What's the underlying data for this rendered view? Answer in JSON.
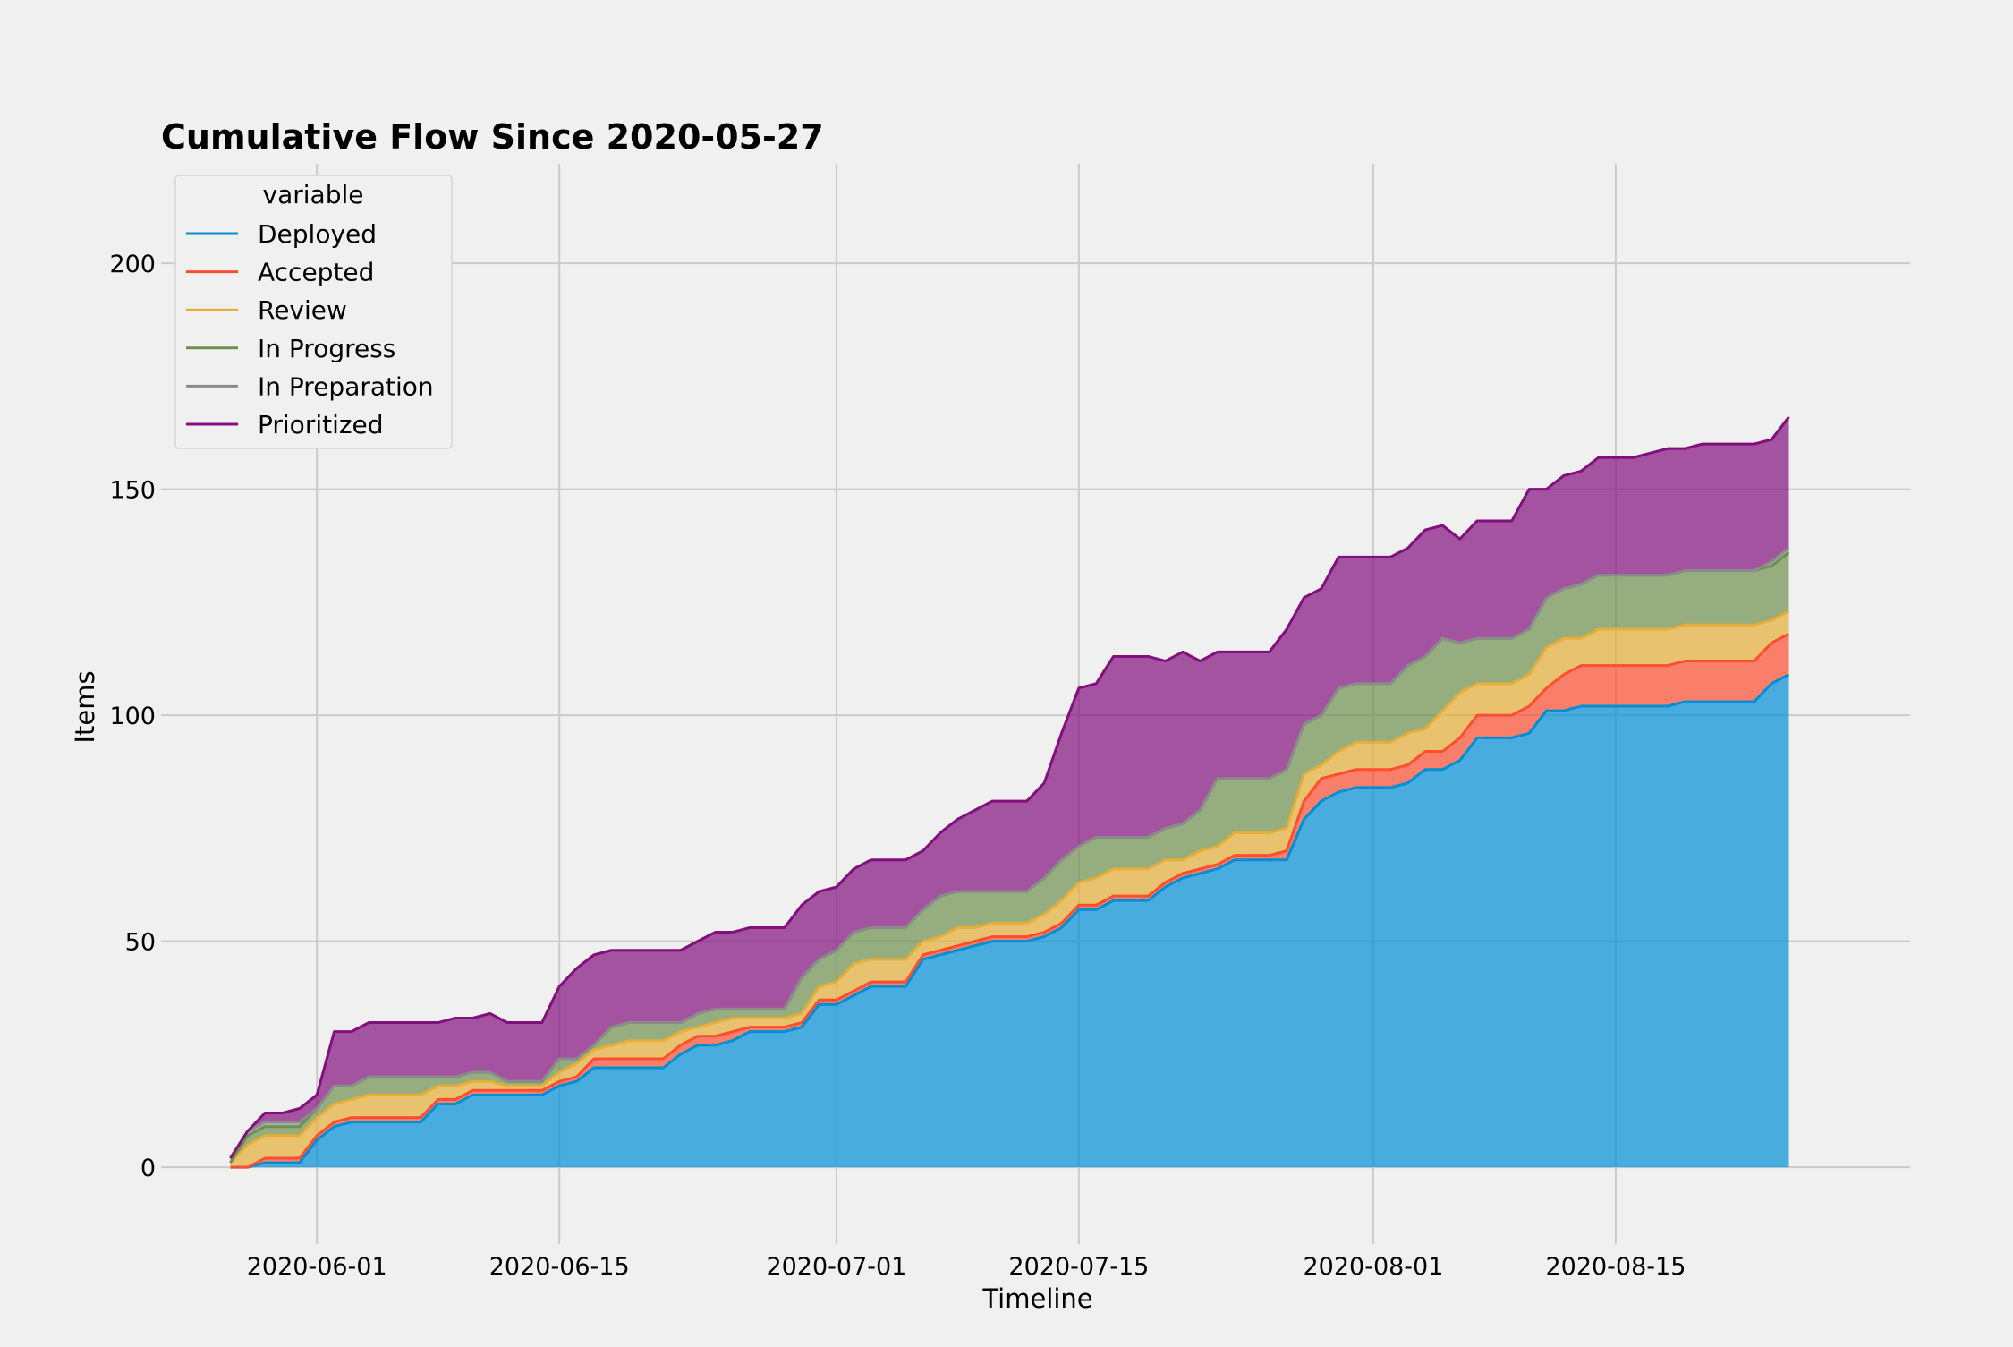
{
  "chart_data": {
    "type": "area",
    "stacked": true,
    "title": "Cumulative Flow Since 2020-05-27",
    "xlabel": "Timeline",
    "ylabel": "Items",
    "x_range": [
      "2020-05-23",
      "2020-09-01"
    ],
    "ylim": [
      -17,
      222
    ],
    "grid": true,
    "legend": {
      "title": "variable",
      "placement": "top-left"
    },
    "x_ticks": [
      "2020-06-01",
      "2020-06-15",
      "2020-07-01",
      "2020-07-15",
      "2020-08-01",
      "2020-08-15"
    ],
    "y_ticks": [
      0,
      50,
      100,
      150,
      200
    ],
    "dates": [
      "2020-05-27",
      "2020-05-28",
      "2020-05-29",
      "2020-05-30",
      "2020-05-31",
      "2020-06-01",
      "2020-06-02",
      "2020-06-03",
      "2020-06-04",
      "2020-06-05",
      "2020-06-06",
      "2020-06-07",
      "2020-06-08",
      "2020-06-09",
      "2020-06-10",
      "2020-06-11",
      "2020-06-12",
      "2020-06-13",
      "2020-06-14",
      "2020-06-15",
      "2020-06-16",
      "2020-06-17",
      "2020-06-18",
      "2020-06-19",
      "2020-06-20",
      "2020-06-21",
      "2020-06-22",
      "2020-06-23",
      "2020-06-24",
      "2020-06-25",
      "2020-06-26",
      "2020-06-27",
      "2020-06-28",
      "2020-06-29",
      "2020-06-30",
      "2020-07-01",
      "2020-07-02",
      "2020-07-03",
      "2020-07-04",
      "2020-07-05",
      "2020-07-06",
      "2020-07-07",
      "2020-07-08",
      "2020-07-09",
      "2020-07-10",
      "2020-07-11",
      "2020-07-12",
      "2020-07-13",
      "2020-07-14",
      "2020-07-15",
      "2020-07-16",
      "2020-07-17",
      "2020-07-18",
      "2020-07-19",
      "2020-07-20",
      "2020-07-21",
      "2020-07-22",
      "2020-07-23",
      "2020-07-24",
      "2020-07-25",
      "2020-07-26",
      "2020-07-27",
      "2020-07-28",
      "2020-07-29",
      "2020-07-30",
      "2020-07-31",
      "2020-08-01",
      "2020-08-02",
      "2020-08-03",
      "2020-08-04",
      "2020-08-05",
      "2020-08-06",
      "2020-08-07",
      "2020-08-08",
      "2020-08-09",
      "2020-08-10",
      "2020-08-11",
      "2020-08-12",
      "2020-08-13",
      "2020-08-14",
      "2020-08-15",
      "2020-08-16",
      "2020-08-17",
      "2020-08-18",
      "2020-08-19",
      "2020-08-20",
      "2020-08-21",
      "2020-08-22",
      "2020-08-23",
      "2020-08-24",
      "2020-08-25"
    ],
    "series": [
      {
        "name": "Deployed",
        "color": "#008fd5",
        "values": [
          0,
          0,
          1,
          1,
          1,
          6,
          9,
          10,
          10,
          10,
          10,
          10,
          14,
          14,
          16,
          16,
          16,
          16,
          16,
          18,
          19,
          22,
          22,
          22,
          22,
          22,
          25,
          27,
          27,
          28,
          30,
          30,
          30,
          31,
          36,
          36,
          38,
          40,
          40,
          40,
          46,
          47,
          48,
          49,
          50,
          50,
          50,
          51,
          53,
          57,
          57,
          59,
          59,
          59,
          62,
          64,
          65,
          66,
          68,
          68,
          68,
          68,
          77,
          81,
          83,
          84,
          84,
          84,
          85,
          88,
          88,
          90,
          95,
          95,
          95,
          96,
          101,
          101,
          102,
          102,
          102,
          102,
          102,
          102,
          103,
          103,
          103,
          103,
          103,
          107,
          109
        ]
      },
      {
        "name": "Accepted",
        "color": "#fc4f30",
        "values": [
          0,
          0,
          1,
          1,
          1,
          1,
          1,
          1,
          1,
          1,
          1,
          1,
          1,
          1,
          1,
          1,
          1,
          1,
          1,
          1,
          1,
          2,
          2,
          2,
          2,
          2,
          2,
          2,
          2,
          2,
          1,
          1,
          1,
          1,
          1,
          1,
          1,
          1,
          1,
          1,
          1,
          1,
          1,
          1,
          1,
          1,
          1,
          1,
          1,
          1,
          1,
          1,
          1,
          1,
          1,
          1,
          1,
          1,
          1,
          1,
          1,
          2,
          4,
          5,
          4,
          4,
          4,
          4,
          4,
          4,
          4,
          5,
          5,
          5,
          5,
          6,
          5,
          8,
          9,
          9,
          9,
          9,
          9,
          9,
          9,
          9,
          9,
          9,
          9,
          9,
          9
        ]
      },
      {
        "name": "Review",
        "color": "#e5ae38",
        "values": [
          1,
          5,
          5,
          5,
          5,
          4,
          4,
          4,
          5,
          5,
          5,
          5,
          3,
          3,
          2,
          2,
          1,
          1,
          1,
          2,
          3,
          2,
          3,
          4,
          4,
          4,
          3,
          2,
          3,
          3,
          2,
          2,
          2,
          2,
          3,
          4,
          6,
          5,
          5,
          5,
          3,
          3,
          4,
          3,
          3,
          3,
          3,
          4,
          5,
          5,
          6,
          6,
          6,
          6,
          5,
          3,
          4,
          4,
          5,
          5,
          5,
          5,
          6,
          3,
          5,
          6,
          6,
          6,
          7,
          5,
          9,
          10,
          7,
          7,
          7,
          7,
          9,
          8,
          6,
          8,
          8,
          8,
          8,
          8,
          8,
          8,
          8,
          8,
          8,
          5,
          5
        ]
      },
      {
        "name": "In Progress",
        "color": "#6d904f",
        "values": [
          0,
          2,
          2,
          2,
          2,
          2,
          4,
          3,
          4,
          4,
          4,
          4,
          2,
          2,
          2,
          2,
          1,
          1,
          1,
          3,
          1,
          1,
          4,
          4,
          4,
          4,
          2,
          3,
          3,
          2,
          2,
          2,
          2,
          8,
          6,
          7,
          7,
          7,
          7,
          7,
          7,
          9,
          8,
          8,
          7,
          7,
          7,
          8,
          9,
          8,
          9,
          7,
          7,
          7,
          7,
          8,
          9,
          15,
          12,
          12,
          12,
          13,
          11,
          11,
          14,
          13,
          13,
          13,
          15,
          16,
          16,
          11,
          10,
          10,
          10,
          10,
          11,
          11,
          12,
          12,
          12,
          12,
          12,
          12,
          12,
          12,
          12,
          12,
          12,
          12,
          13
        ]
      },
      {
        "name": "In Preparation",
        "color": "#8b8b8b",
        "values": [
          1,
          1,
          1,
          1,
          1,
          0,
          0,
          0,
          0,
          0,
          0,
          0,
          0,
          0,
          0,
          0,
          0,
          0,
          0,
          0,
          0,
          0,
          0,
          0,
          0,
          0,
          0,
          0,
          0,
          0,
          0,
          0,
          0,
          0,
          0,
          0,
          0,
          0,
          0,
          0,
          0,
          0,
          0,
          0,
          0,
          0,
          0,
          0,
          0,
          0,
          0,
          0,
          0,
          0,
          0,
          0,
          0,
          0,
          0,
          0,
          0,
          0,
          0,
          0,
          0,
          0,
          0,
          0,
          0,
          0,
          0,
          0,
          0,
          0,
          0,
          0,
          0,
          0,
          0,
          0,
          0,
          0,
          0,
          0,
          0,
          0,
          0,
          0,
          0,
          1,
          1
        ]
      },
      {
        "name": "Prioritized",
        "color": "#810f7c",
        "values": [
          0,
          0,
          2,
          2,
          3,
          3,
          12,
          12,
          12,
          12,
          12,
          12,
          12,
          13,
          12,
          13,
          13,
          13,
          13,
          16,
          20,
          20,
          17,
          16,
          16,
          16,
          16,
          16,
          17,
          17,
          18,
          18,
          18,
          16,
          15,
          14,
          14,
          15,
          15,
          15,
          13,
          14,
          16,
          18,
          20,
          20,
          20,
          21,
          28,
          35,
          34,
          40,
          40,
          40,
          37,
          38,
          33,
          28,
          28,
          28,
          28,
          31,
          28,
          28,
          29,
          28,
          28,
          28,
          26,
          28,
          25,
          23,
          26,
          26,
          26,
          31,
          24,
          25,
          25,
          26,
          26,
          26,
          27,
          28,
          27,
          28,
          28,
          28,
          28,
          27,
          29
        ]
      }
    ]
  }
}
